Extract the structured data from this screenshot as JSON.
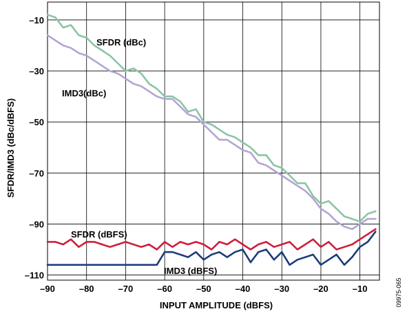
{
  "figure_id": "09975-065",
  "chart_data": {
    "type": "line",
    "title": "",
    "xlabel": "INPUT AMPLITUDE (dBFS)",
    "ylabel": "SFDR/IMD3 (dBc/dBFS)",
    "xlim": [
      -90,
      -5
    ],
    "ylim": [
      -112,
      -3
    ],
    "x_ticks": [
      -90,
      -80,
      -70,
      -60,
      -50,
      -40,
      -30,
      -20,
      -10
    ],
    "x_tick_labels": [
      "–90",
      "–80",
      "–70",
      "–60",
      "–50",
      "–40",
      "–30",
      "–20",
      "–10"
    ],
    "y_ticks": [
      -110,
      -90,
      -70,
      -50,
      -30,
      -10
    ],
    "y_tick_labels": [
      "–110",
      "–90",
      "–70",
      "–50",
      "–30",
      "–10"
    ],
    "grid": true,
    "legend": "none (labels placed next to curves)",
    "series": [
      {
        "name": "SFDR (dBc)",
        "color": "#8cc4a4",
        "x": [
          -90,
          -88,
          -86,
          -84,
          -82,
          -80,
          -78,
          -76,
          -74,
          -72,
          -70,
          -68,
          -66,
          -64,
          -62,
          -60,
          -58,
          -56,
          -54,
          -52,
          -50,
          -48,
          -46,
          -44,
          -42,
          -40,
          -38,
          -36,
          -34,
          -32,
          -30,
          -28,
          -26,
          -24,
          -22,
          -20,
          -18,
          -16,
          -14,
          -12,
          -10,
          -8,
          -6
        ],
        "values": [
          -8,
          -9,
          -13,
          -12,
          -16,
          -17,
          -20,
          -22,
          -24,
          -27,
          -30,
          -29,
          -31,
          -35,
          -37,
          -40,
          -40,
          -42,
          -46,
          -45,
          -50,
          -51,
          -53,
          -55,
          -56,
          -58,
          -60,
          -63,
          -63,
          -67,
          -68,
          -71,
          -74,
          -74,
          -79,
          -82,
          -81,
          -84,
          -87,
          -88,
          -89,
          -86,
          -85
        ]
      },
      {
        "name": "IMD3(dBc)",
        "color": "#b4a4d4",
        "x": [
          -90,
          -88,
          -86,
          -84,
          -82,
          -80,
          -78,
          -76,
          -74,
          -72,
          -70,
          -68,
          -66,
          -64,
          -62,
          -60,
          -58,
          -56,
          -54,
          -52,
          -50,
          -48,
          -46,
          -44,
          -42,
          -40,
          -38,
          -36,
          -34,
          -32,
          -30,
          -28,
          -26,
          -24,
          -22,
          -20,
          -18,
          -16,
          -14,
          -12,
          -10,
          -8,
          -6
        ],
        "values": [
          -16,
          -18,
          -20,
          -21,
          -23,
          -24,
          -26,
          -28,
          -30,
          -31,
          -33,
          -35,
          -36,
          -38,
          -40,
          -41,
          -41,
          -44,
          -47,
          -48,
          -51,
          -54,
          -57,
          -57,
          -59,
          -61,
          -62,
          -66,
          -67,
          -69,
          -71,
          -73,
          -75,
          -77,
          -80,
          -84,
          -86,
          -89,
          -91,
          -92,
          -90,
          -88,
          -88
        ]
      },
      {
        "name": "SFDR (dBFS)",
        "color": "#d01c3c",
        "x": [
          -90,
          -88,
          -86,
          -84,
          -82,
          -80,
          -78,
          -76,
          -74,
          -72,
          -70,
          -68,
          -66,
          -64,
          -62,
          -60,
          -58,
          -56,
          -54,
          -52,
          -50,
          -48,
          -46,
          -44,
          -42,
          -40,
          -38,
          -36,
          -34,
          -32,
          -30,
          -28,
          -26,
          -24,
          -22,
          -20,
          -18,
          -16,
          -14,
          -12,
          -10,
          -8,
          -6
        ],
        "values": [
          -97,
          -97,
          -98,
          -96,
          -99,
          -97,
          -97,
          -98,
          -99,
          -98,
          -97,
          -98,
          -99,
          -98,
          -100,
          -97,
          -99,
          -97,
          -98,
          -97,
          -98,
          -100,
          -97,
          -98,
          -96,
          -98,
          -100,
          -98,
          -97,
          -99,
          -98,
          -97,
          -100,
          -98,
          -96,
          -99,
          -97,
          -100,
          -99,
          -98,
          -96,
          -94,
          -92
        ]
      },
      {
        "name": "IMD3 (dBFS)",
        "color": "#1c3c7c",
        "x": [
          -90,
          -88,
          -86,
          -84,
          -82,
          -80,
          -78,
          -76,
          -74,
          -72,
          -70,
          -68,
          -66,
          -64,
          -62,
          -60,
          -58,
          -56,
          -54,
          -52,
          -50,
          -48,
          -46,
          -44,
          -42,
          -40,
          -38,
          -36,
          -34,
          -32,
          -30,
          -28,
          -26,
          -24,
          -22,
          -20,
          -18,
          -16,
          -14,
          -12,
          -10,
          -8,
          -6
        ],
        "values": [
          -106,
          -106,
          -106,
          -106,
          -106,
          -106,
          -106,
          -106,
          -106,
          -106,
          -106,
          -106,
          -106,
          -106,
          -106,
          -101,
          -101,
          -102,
          -103,
          -101,
          -104,
          -102,
          -101,
          -103,
          -101,
          -100,
          -105,
          -101,
          -100,
          -104,
          -101,
          -106,
          -104,
          -103,
          -102,
          -106,
          -104,
          -102,
          -106,
          -103,
          -99,
          -97,
          -93
        ]
      }
    ]
  }
}
